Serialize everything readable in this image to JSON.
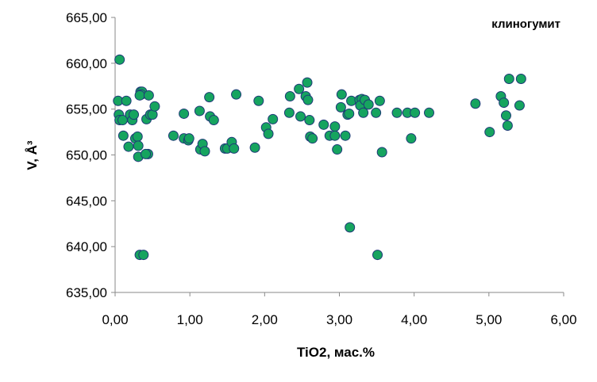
{
  "chart_data": {
    "type": "scatter",
    "annotation": "клиногумит",
    "xlabel": "TiO2,  мас.%",
    "ylabel": "V, Å³",
    "xlim": [
      0,
      6
    ],
    "ylim": [
      635,
      665
    ],
    "x_ticks": [
      "0,00",
      "1,00",
      "2,00",
      "3,00",
      "4,00",
      "5,00",
      "6,00"
    ],
    "y_ticks": [
      "635,00",
      "640,00",
      "645,00",
      "650,00",
      "655,00",
      "660,00",
      "665,00"
    ],
    "grid": false,
    "marker_color": "#16a45f",
    "marker_edge": "#1f3a78",
    "points": [
      [
        0.06,
        660.4
      ],
      [
        0.04,
        655.9
      ],
      [
        0.05,
        654.4
      ],
      [
        0.06,
        653.8
      ],
      [
        0.1,
        653.8
      ],
      [
        0.15,
        655.9
      ],
      [
        0.11,
        652.1
      ],
      [
        0.18,
        650.9
      ],
      [
        0.2,
        654.4
      ],
      [
        0.23,
        653.8
      ],
      [
        0.25,
        654.4
      ],
      [
        0.27,
        651.8
      ],
      [
        0.3,
        652.0
      ],
      [
        0.31,
        651.0
      ],
      [
        0.31,
        649.8
      ],
      [
        0.34,
        656.9
      ],
      [
        0.36,
        656.9
      ],
      [
        0.35,
        656.6
      ],
      [
        0.33,
        656.5
      ],
      [
        0.42,
        653.9
      ],
      [
        0.45,
        656.5
      ],
      [
        0.44,
        650.1
      ],
      [
        0.41,
        650.1
      ],
      [
        0.47,
        654.4
      ],
      [
        0.5,
        654.4
      ],
      [
        0.53,
        655.3
      ],
      [
        0.33,
        639.1
      ],
      [
        0.38,
        639.1
      ],
      [
        0.78,
        652.1
      ],
      [
        0.92,
        651.8
      ],
      [
        0.92,
        654.5
      ],
      [
        0.98,
        651.6
      ],
      [
        0.99,
        651.8
      ],
      [
        1.13,
        654.8
      ],
      [
        1.14,
        650.6
      ],
      [
        1.17,
        651.2
      ],
      [
        1.2,
        650.4
      ],
      [
        1.26,
        656.3
      ],
      [
        1.27,
        654.2
      ],
      [
        1.32,
        653.8
      ],
      [
        1.47,
        650.7
      ],
      [
        1.5,
        650.7
      ],
      [
        1.56,
        651.4
      ],
      [
        1.59,
        650.7
      ],
      [
        1.62,
        656.6
      ],
      [
        1.87,
        650.8
      ],
      [
        1.92,
        655.9
      ],
      [
        2.02,
        653.0
      ],
      [
        2.05,
        652.3
      ],
      [
        2.11,
        653.9
      ],
      [
        2.33,
        654.6
      ],
      [
        2.34,
        656.4
      ],
      [
        2.46,
        657.2
      ],
      [
        2.48,
        654.2
      ],
      [
        2.57,
        657.9
      ],
      [
        2.55,
        656.4
      ],
      [
        2.58,
        656.0
      ],
      [
        2.6,
        653.8
      ],
      [
        2.61,
        652.0
      ],
      [
        2.64,
        651.8
      ],
      [
        2.79,
        653.3
      ],
      [
        2.87,
        652.1
      ],
      [
        2.94,
        653.1
      ],
      [
        2.94,
        652.1
      ],
      [
        2.97,
        650.6
      ],
      [
        3.03,
        656.6
      ],
      [
        3.02,
        655.2
      ],
      [
        3.08,
        652.1
      ],
      [
        3.11,
        654.4
      ],
      [
        3.13,
        654.5
      ],
      [
        3.16,
        655.9
      ],
      [
        3.14,
        642.1
      ],
      [
        3.27,
        656.0
      ],
      [
        3.3,
        656.1
      ],
      [
        3.28,
        655.4
      ],
      [
        3.32,
        654.6
      ],
      [
        3.34,
        656.0
      ],
      [
        3.39,
        655.5
      ],
      [
        3.49,
        654.6
      ],
      [
        3.54,
        655.9
      ],
      [
        3.57,
        650.3
      ],
      [
        3.51,
        639.1
      ],
      [
        3.77,
        654.6
      ],
      [
        3.91,
        654.6
      ],
      [
        3.96,
        651.8
      ],
      [
        4.01,
        654.6
      ],
      [
        4.2,
        654.6
      ],
      [
        4.82,
        655.6
      ],
      [
        5.01,
        652.5
      ],
      [
        5.16,
        656.4
      ],
      [
        5.2,
        655.7
      ],
      [
        5.23,
        654.3
      ],
      [
        5.25,
        653.2
      ],
      [
        5.27,
        658.3
      ],
      [
        5.41,
        655.4
      ],
      [
        5.43,
        658.3
      ]
    ]
  }
}
